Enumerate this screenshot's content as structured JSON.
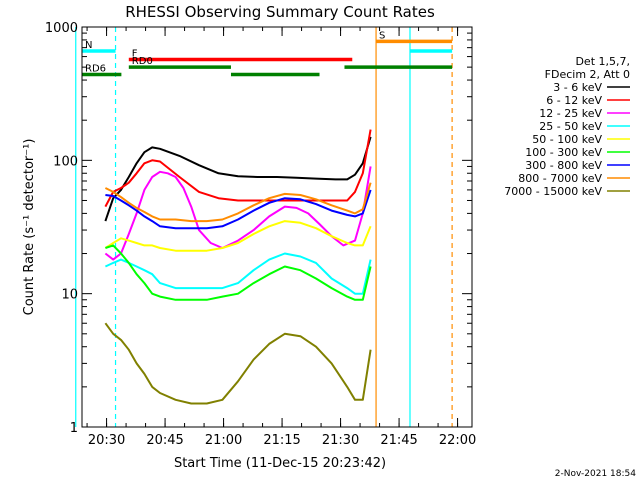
{
  "chart_data": {
    "type": "line",
    "title": "RHESSI Observing Summary Count Rates",
    "xlabel": "Start Time (11-Dec-15 20:23:42)",
    "ylabel": "Count Rate (s⁻¹ detector⁻¹)",
    "x_unit": "minutes after 20:23:42",
    "xlim": [
      0,
      100
    ],
    "ylim": [
      1,
      1000
    ],
    "yscale": "log",
    "x_ticks": [
      {
        "x": 6.3,
        "label": "20:30"
      },
      {
        "x": 21.3,
        "label": "20:45"
      },
      {
        "x": 36.3,
        "label": "21:00"
      },
      {
        "x": 51.3,
        "label": "21:15"
      },
      {
        "x": 66.3,
        "label": "21:30"
      },
      {
        "x": 81.3,
        "label": "21:45"
      },
      {
        "x": 96.3,
        "label": "22:00"
      }
    ],
    "y_ticks": [
      {
        "y": 1,
        "label": "1"
      },
      {
        "y": 10,
        "label": "10"
      },
      {
        "y": 100,
        "label": "100"
      },
      {
        "y": 1000,
        "label": "1000"
      }
    ],
    "legend_header": [
      "Det 1,5,7,",
      "FDecim 2, Att 0"
    ],
    "legend_position": "right",
    "series": [
      {
        "name": "3 - 6 keV",
        "color": "#000000",
        "x": [
          6,
          8,
          10,
          12,
          14,
          16,
          18,
          20,
          25,
          30,
          35,
          40,
          45,
          50,
          55,
          60,
          65,
          68,
          70,
          72,
          74
        ],
        "y": [
          35,
          52,
          60,
          75,
          95,
          115,
          125,
          122,
          108,
          92,
          80,
          76,
          75,
          75,
          74,
          73,
          72,
          72,
          78,
          95,
          150
        ]
      },
      {
        "name": "6 - 12 keV",
        "color": "#ff0000",
        "x": [
          6,
          8,
          10,
          12,
          14,
          16,
          18,
          20,
          25,
          30,
          35,
          40,
          45,
          50,
          55,
          60,
          65,
          68,
          70,
          72,
          74
        ],
        "y": [
          45,
          58,
          62,
          68,
          80,
          95,
          100,
          98,
          75,
          58,
          52,
          50,
          50,
          50,
          50,
          50,
          50,
          50,
          58,
          80,
          170
        ]
      },
      {
        "name": "12 - 25 keV",
        "color": "#ff00ff",
        "x": [
          6,
          8,
          10,
          12,
          14,
          16,
          18,
          20,
          22,
          24,
          26,
          28,
          30,
          33,
          36,
          40,
          44,
          48,
          52,
          55,
          58,
          61,
          64,
          67,
          70,
          72,
          74
        ],
        "y": [
          20,
          18,
          20,
          28,
          40,
          60,
          75,
          82,
          80,
          75,
          62,
          45,
          30,
          24,
          22,
          25,
          30,
          38,
          45,
          44,
          40,
          33,
          27,
          23,
          25,
          40,
          90
        ]
      },
      {
        "name": "25 - 50 keV",
        "color": "#00ffff",
        "x": [
          6,
          8,
          10,
          12,
          14,
          16,
          18,
          20,
          24,
          28,
          32,
          36,
          40,
          44,
          48,
          52,
          56,
          60,
          64,
          68,
          70,
          72,
          74
        ],
        "y": [
          16,
          17,
          18,
          17,
          16,
          15,
          14,
          12,
          11,
          11,
          11,
          11,
          12,
          15,
          18,
          20,
          19,
          17,
          13,
          11,
          10,
          10,
          18
        ]
      },
      {
        "name": "50 - 100 keV",
        "color": "#ffff00",
        "x": [
          6,
          8,
          10,
          12,
          14,
          16,
          18,
          20,
          24,
          28,
          32,
          36,
          40,
          44,
          48,
          52,
          56,
          60,
          64,
          68,
          70,
          72,
          74
        ],
        "y": [
          22,
          24,
          26,
          25,
          24,
          23,
          23,
          22,
          21,
          21,
          21,
          22,
          24,
          28,
          32,
          35,
          34,
          31,
          27,
          24,
          23,
          23,
          32
        ]
      },
      {
        "name": "100 - 300 keV",
        "color": "#00ff00",
        "x": [
          6,
          8,
          10,
          12,
          14,
          16,
          18,
          20,
          24,
          28,
          32,
          36,
          40,
          44,
          48,
          52,
          56,
          60,
          64,
          68,
          70,
          72,
          74
        ],
        "y": [
          22,
          23,
          20,
          17,
          14,
          12,
          10,
          9.5,
          9,
          9,
          9,
          9.5,
          10,
          12,
          14,
          16,
          15,
          13,
          11,
          9.5,
          9,
          9,
          16
        ]
      },
      {
        "name": "300 - 800 keV",
        "color": "#0000ff",
        "x": [
          6,
          8,
          10,
          12,
          14,
          16,
          18,
          20,
          24,
          28,
          32,
          36,
          40,
          44,
          48,
          52,
          56,
          60,
          64,
          68,
          70,
          72,
          74
        ],
        "y": [
          55,
          54,
          50,
          46,
          42,
          38,
          35,
          32,
          31,
          31,
          31,
          32,
          36,
          42,
          48,
          52,
          51,
          47,
          42,
          39,
          38,
          40,
          60
        ]
      },
      {
        "name": "800 - 7000 keV",
        "color": "#ff8c00",
        "x": [
          6,
          8,
          10,
          12,
          14,
          16,
          18,
          20,
          24,
          28,
          32,
          36,
          40,
          44,
          48,
          52,
          56,
          60,
          64,
          68,
          70,
          72,
          74
        ],
        "y": [
          62,
          58,
          53,
          48,
          44,
          41,
          38,
          36,
          36,
          35,
          35,
          36,
          40,
          46,
          52,
          56,
          55,
          51,
          46,
          42,
          40,
          43,
          68
        ]
      },
      {
        "name": "7000 - 15000 keV",
        "color": "#808000",
        "x": [
          6,
          8,
          10,
          12,
          14,
          16,
          18,
          20,
          24,
          28,
          32,
          36,
          40,
          44,
          48,
          52,
          56,
          60,
          64,
          68,
          70,
          72,
          74
        ],
        "y": [
          6,
          5,
          4.5,
          3.8,
          3,
          2.5,
          2,
          1.8,
          1.6,
          1.5,
          1.5,
          1.6,
          2.2,
          3.2,
          4.2,
          5,
          4.8,
          4,
          3,
          2,
          1.6,
          1.6,
          3.8
        ]
      }
    ],
    "vertical_markers": [
      {
        "x": -1.6,
        "color": "#00ffff",
        "style": "solid"
      },
      {
        "x": 8.6,
        "color": "#00ffff",
        "style": "dashed"
      },
      {
        "x": 75.4,
        "color": "#ff8c00",
        "style": "solid"
      },
      {
        "x": 84.1,
        "color": "#00ffff",
        "style": "solid"
      },
      {
        "x": 94.9,
        "color": "#ff8c00",
        "style": "dashed"
      }
    ],
    "flag_bars": [
      {
        "label": "N",
        "color": "#00ffff",
        "x": [
          -1.6,
          8.6
        ],
        "y": 660
      },
      {
        "label": "",
        "color": "#00ffff",
        "x": [
          84.1,
          94.9
        ],
        "y": 660
      },
      {
        "label": "S",
        "color": "#ff8c00",
        "x": [
          75.4,
          94.9
        ],
        "y": 780
      },
      {
        "label": "F",
        "color": "#ff0000",
        "x": [
          12,
          69.3
        ],
        "y": 570
      },
      {
        "label": "RD0",
        "color": "#008000",
        "x": [
          12,
          38.2
        ],
        "y": 500
      },
      {
        "label": "",
        "color": "#008000",
        "x": [
          67.3,
          94.9
        ],
        "y": 500
      },
      {
        "label": "RD6",
        "color": "#008000",
        "x": [
          -1.6,
          10.1
        ],
        "y": 440
      },
      {
        "label": "",
        "color": "#008000",
        "x": [
          38.2,
          60.9
        ],
        "y": 440
      }
    ]
  },
  "footer_date": "2-Nov-2021 18:54"
}
